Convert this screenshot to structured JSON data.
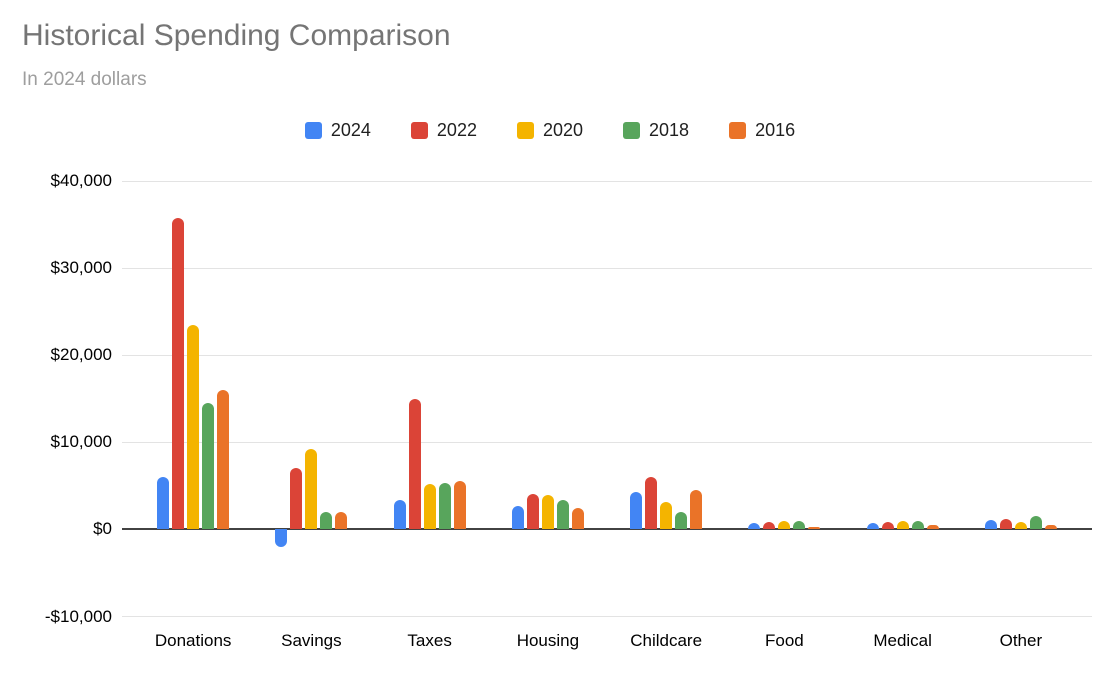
{
  "title": "Historical Spending Comparison",
  "subtitle": "In 2024 dollars",
  "chart_data": {
    "type": "bar",
    "title": "Historical Spending Comparison",
    "subtitle": "In 2024 dollars",
    "categories": [
      "Donations",
      "Savings",
      "Taxes",
      "Housing",
      "Childcare",
      "Food",
      "Medical",
      "Other"
    ],
    "series": [
      {
        "name": "2024",
        "color": "#4285F4",
        "values": [
          6000,
          -2000,
          3400,
          2700,
          4300,
          700,
          700,
          1100
        ]
      },
      {
        "name": "2022",
        "color": "#DB4437",
        "values": [
          35800,
          7000,
          15000,
          4100,
          6000,
          800,
          800,
          1200
        ]
      },
      {
        "name": "2020",
        "color": "#F4B400",
        "values": [
          23500,
          9200,
          5200,
          3900,
          3100,
          1000,
          1000,
          800
        ]
      },
      {
        "name": "2018",
        "color": "#58A55C",
        "values": [
          14500,
          2000,
          5300,
          3400,
          2000,
          1000,
          1000,
          1500
        ]
      },
      {
        "name": "2016",
        "color": "#EA7328",
        "values": [
          16000,
          2000,
          5500,
          2400,
          4500,
          300,
          500,
          500
        ]
      }
    ],
    "ylim": [
      -10000,
      40000
    ],
    "yticks": [
      {
        "value": 40000,
        "label": "$40,000"
      },
      {
        "value": 30000,
        "label": "$30,000"
      },
      {
        "value": 20000,
        "label": "$20,000"
      },
      {
        "value": 10000,
        "label": "$10,000"
      },
      {
        "value": 0,
        "label": "$0"
      },
      {
        "value": -10000,
        "label": "-$10,000"
      }
    ],
    "grid": true,
    "legend_position": "top",
    "zero_axis_color": "#424242",
    "gridline_color": "#e3e3e3"
  }
}
